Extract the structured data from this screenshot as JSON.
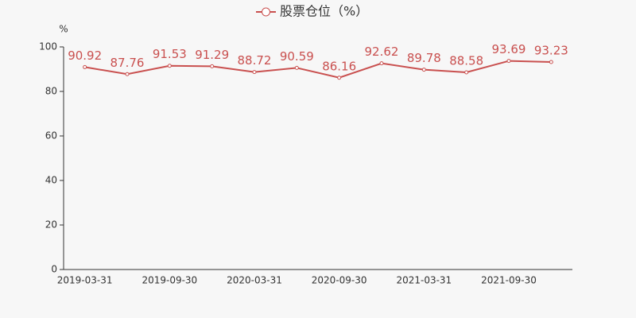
{
  "chart_data": {
    "type": "line",
    "y_label": "%",
    "categories": [
      "2019-03-31",
      null,
      "2019-09-30",
      null,
      "2020-03-31",
      null,
      "2020-09-30",
      null,
      "2021-03-31",
      null,
      "2021-09-30",
      null
    ],
    "series": [
      {
        "name": "股票仓位（%）",
        "color": "#c9504f",
        "values": [
          90.92,
          87.76,
          91.53,
          91.29,
          88.72,
          90.59,
          86.16,
          92.62,
          89.78,
          88.58,
          93.69,
          93.23
        ]
      }
    ],
    "ylim": [
      0,
      100
    ],
    "yticks": [
      0,
      20,
      40,
      60,
      80,
      100
    ],
    "grid": false,
    "legend": "top"
  }
}
